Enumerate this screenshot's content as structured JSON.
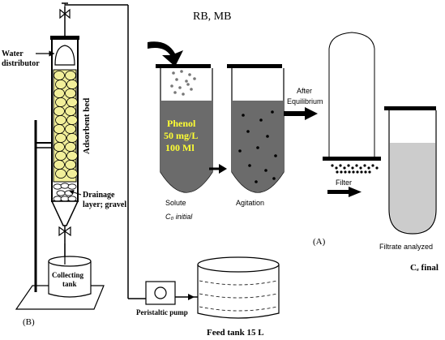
{
  "labels": {
    "water_distributor_1": "Water",
    "water_distributor_2": "distributor",
    "adsorbent_bed": "Adsorbent  bed",
    "drainage_1": "Drainage",
    "drainage_2": "layer; gravel",
    "collecting_1": "Collecting",
    "collecting_2": "tank",
    "peristaltic_pump": "Peristaltic pump",
    "feed_tank": "Feed tank 15 L",
    "panel_b": "(B)",
    "adsorbates": "RB, MB",
    "phenol_1": "Phenol",
    "phenol_2": "50 mg/L",
    "phenol_3": "100 Ml",
    "solute": "Solute",
    "c0_initial": "C₀ initial",
    "agitation": "Agitation",
    "after_1": "After",
    "after_2": "Equilibrium",
    "filter": "Filter",
    "panel_a": "(A)",
    "filtrate_analyzed": "Filtrate analyzed",
    "ce_final": "Cₑ final"
  },
  "colors": {
    "solution_dark": "#6b6b6b",
    "filtrate": "#cccccc",
    "bed_fill": "#f2ef9a",
    "phenol_text": "#ffff33"
  }
}
